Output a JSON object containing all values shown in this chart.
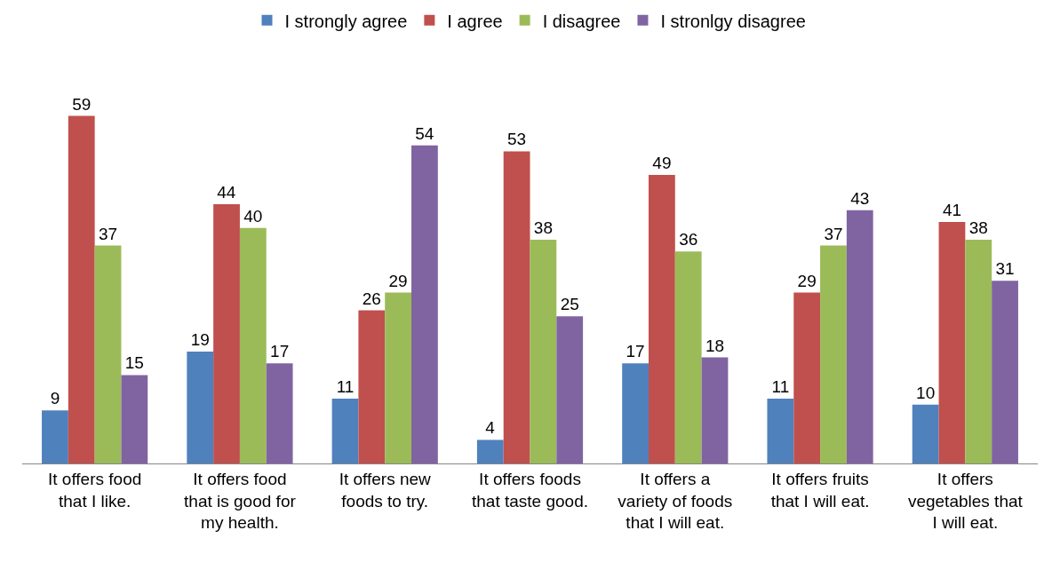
{
  "chart_data": {
    "type": "bar",
    "data_labels": true,
    "legend": "top",
    "categories": [
      "It offers food that I like.",
      "It offers food that is good for my health.",
      "It offers new foods to try.",
      "It offers foods that taste good.",
      "It offers a variety of foods that I will eat.",
      "It offers fruits that I will eat.",
      "It offers vegetables that I will eat."
    ],
    "series": [
      {
        "name": "I strongly agree",
        "color": "#4f81bd",
        "values": [
          9,
          19,
          11,
          4,
          17,
          11,
          10
        ]
      },
      {
        "name": "I agree",
        "color": "#c0504d",
        "values": [
          59,
          44,
          26,
          53,
          49,
          29,
          41
        ]
      },
      {
        "name": "I disagree",
        "color": "#9bbb59",
        "values": [
          37,
          40,
          29,
          38,
          36,
          37,
          38
        ]
      },
      {
        "name": "I stronlgy disagree",
        "color": "#8064a2",
        "values": [
          15,
          17,
          54,
          25,
          18,
          43,
          31
        ]
      }
    ]
  }
}
